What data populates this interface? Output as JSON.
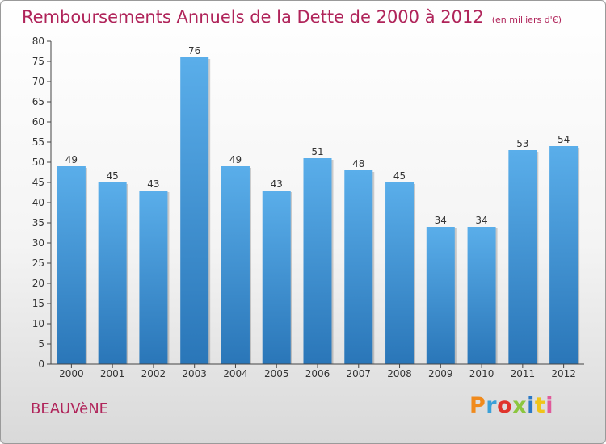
{
  "header": {
    "title": "Remboursements Annuels de la Dette de 2000 à 2012",
    "unit": "(en milliers d'€)"
  },
  "footer": {
    "commune": "BEAUVèNE",
    "logo_text": "Proxiti",
    "logo_colors": [
      "#f08a1c",
      "#3aa0d8",
      "#e0342c",
      "#8cc63f",
      "#2a78c6",
      "#f0c419",
      "#e05a9a"
    ]
  },
  "colors": {
    "title": "#b0245a",
    "bar_top": "#5aaeea",
    "bar_bottom": "#2a76b8",
    "axis": "#444444"
  },
  "chart_data": {
    "type": "bar",
    "title": "Remboursements Annuels de la Dette de 2000 à 2012",
    "unit": "(en milliers d'€)",
    "categories": [
      "2000",
      "2001",
      "2002",
      "2003",
      "2004",
      "2005",
      "2006",
      "2007",
      "2008",
      "2009",
      "2010",
      "2011",
      "2012"
    ],
    "values": [
      49,
      45,
      43,
      76,
      49,
      43,
      51,
      48,
      45,
      34,
      34,
      53,
      54
    ],
    "ylim": [
      0,
      80
    ],
    "yticks": [
      0,
      5,
      10,
      15,
      20,
      25,
      30,
      35,
      40,
      45,
      50,
      55,
      60,
      65,
      70,
      75,
      80
    ],
    "grid": false,
    "data_labels": true
  }
}
